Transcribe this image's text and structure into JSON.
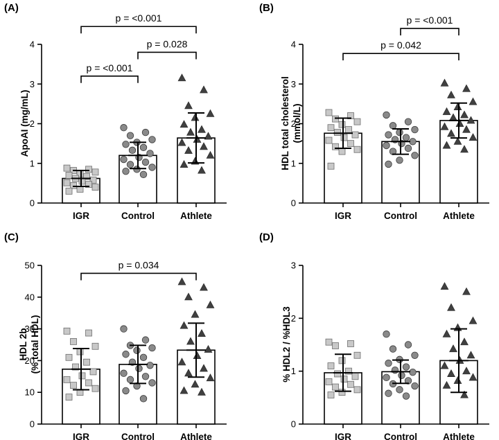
{
  "figure": {
    "colors": {
      "igr": "#c8c8c8",
      "control": "#8a8a8a",
      "athlete": "#404040",
      "axis": "#000000"
    }
  },
  "chart_data": [
    {
      "type": "bar",
      "panel": "(A)",
      "categories": [
        "IGR",
        "Control",
        "Athlete"
      ],
      "ylabel": "ApoAI (mg/mL)",
      "ylabel_lines": [
        "ApoAI (mg/mL)"
      ],
      "ylim": [
        0,
        4
      ],
      "yticks": [
        0,
        1,
        2,
        3,
        4
      ],
      "means": [
        0.62,
        1.2,
        1.64
      ],
      "sd": [
        0.2,
        0.33,
        0.63
      ],
      "points": [
        [
          0.88,
          0.85,
          0.82,
          0.78,
          0.73,
          0.7,
          0.67,
          0.62,
          0.58,
          0.55,
          0.51,
          0.47,
          0.44,
          0.4,
          0.35,
          0.3
        ],
        [
          1.9,
          1.78,
          1.7,
          1.6,
          1.53,
          1.48,
          1.4,
          1.33,
          1.25,
          1.15,
          1.1,
          1.03,
          0.97,
          0.9,
          0.85,
          0.8,
          0.72
        ],
        [
          3.15,
          2.85,
          2.45,
          2.25,
          2.15,
          1.98,
          1.85,
          1.78,
          1.68,
          1.6,
          1.52,
          1.42,
          1.32,
          1.2,
          1.05,
          0.97,
          0.82
        ]
      ],
      "comparisons": [
        {
          "from": 0,
          "to": 1,
          "label": "p = <0.001",
          "y": 3.2
        },
        {
          "from": 1,
          "to": 2,
          "label": "p = 0.028",
          "y": 3.8
        },
        {
          "from": 0,
          "to": 2,
          "label": "p = <0.001",
          "y": 4.45
        }
      ]
    },
    {
      "type": "bar",
      "panel": "(B)",
      "categories": [
        "IGR",
        "Control",
        "Athlete"
      ],
      "ylabel": "HDL total cholesterol (mmol/L)",
      "ylabel_lines": [
        "HDL total cholesterol",
        "(mmol/L)"
      ],
      "ylim": [
        0,
        4
      ],
      "yticks": [
        0,
        1,
        2,
        3,
        4
      ],
      "means": [
        1.76,
        1.55,
        2.08
      ],
      "sd": [
        0.38,
        0.32,
        0.44
      ],
      "points": [
        [
          2.28,
          2.2,
          2.12,
          2.05,
          1.98,
          1.9,
          1.85,
          1.78,
          1.72,
          1.65,
          1.58,
          1.5,
          1.42,
          1.35,
          1.3,
          0.93
        ],
        [
          2.22,
          2.05,
          1.95,
          1.85,
          1.78,
          1.72,
          1.65,
          1.6,
          1.55,
          1.5,
          1.45,
          1.38,
          1.3,
          1.2,
          1.08,
          0.98
        ],
        [
          3.02,
          2.88,
          2.72,
          2.55,
          2.42,
          2.3,
          2.22,
          2.15,
          2.08,
          2.0,
          1.92,
          1.85,
          1.75,
          1.65,
          1.55,
          1.45,
          1.35
        ]
      ],
      "comparisons": [
        {
          "from": 0,
          "to": 2,
          "label": "p = 0.042",
          "y": 3.77
        },
        {
          "from": 1,
          "to": 2,
          "label": "p = <0.001",
          "y": 4.4
        }
      ]
    },
    {
      "type": "bar",
      "panel": "(C)",
      "categories": [
        "IGR",
        "Control",
        "Athlete"
      ],
      "ylabel": "HDL 2b (% total HDL)",
      "ylabel_lines": [
        "HDL 2b",
        "(% total HDL)"
      ],
      "ylim": [
        0,
        50
      ],
      "yticks": [
        0,
        10,
        20,
        30,
        40,
        50
      ],
      "means": [
        17.3,
        18.8,
        23.3
      ],
      "sd": [
        6.5,
        6.0,
        8.5
      ],
      "points": [
        [
          29.3,
          28.7,
          26.0,
          24.5,
          22.8,
          21.0,
          19.5,
          18.0,
          16.5,
          15.2,
          14.0,
          13.0,
          12.2,
          11.2,
          10.0,
          8.5
        ],
        [
          30.0,
          26.5,
          24.8,
          24.0,
          23.2,
          22.0,
          21.0,
          19.5,
          18.5,
          17.5,
          16.0,
          15.0,
          14.0,
          13.0,
          12.0,
          10.5,
          8.0
        ],
        [
          44.8,
          43.0,
          40.0,
          37.5,
          34.5,
          31.0,
          28.5,
          26.0,
          23.5,
          21.5,
          19.5,
          17.5,
          16.0,
          14.5,
          12.5,
          10.5,
          10.0
        ]
      ],
      "comparisons": [
        {
          "from": 0,
          "to": 2,
          "label": "p = 0.034",
          "y": 47.5
        }
      ]
    },
    {
      "type": "bar",
      "panel": "(D)",
      "categories": [
        "IGR",
        "Control",
        "Athlete"
      ],
      "ylabel": "% HDL2 / %HDL3",
      "ylabel_lines": [
        "% HDL2 / %HDL3"
      ],
      "ylim": [
        0,
        3
      ],
      "yticks": [
        0,
        1,
        2,
        3
      ],
      "means": [
        0.97,
        0.99,
        1.2
      ],
      "sd": [
        0.35,
        0.22,
        0.6
      ],
      "points": [
        [
          1.55,
          1.52,
          1.48,
          1.3,
          1.2,
          1.1,
          1.0,
          0.95,
          0.9,
          0.85,
          0.8,
          0.75,
          0.7,
          0.65,
          0.6,
          0.55
        ],
        [
          1.7,
          1.5,
          1.42,
          1.3,
          1.22,
          1.15,
          1.08,
          1.02,
          0.98,
          0.92,
          0.88,
          0.82,
          0.76,
          0.72,
          0.65,
          0.58,
          0.53
        ],
        [
          2.6,
          2.5,
          2.2,
          1.95,
          1.82,
          1.7,
          1.55,
          1.42,
          1.3,
          1.2,
          1.1,
          1.0,
          0.95,
          0.88,
          0.82,
          0.73,
          0.55
        ]
      ],
      "comparisons": []
    }
  ]
}
